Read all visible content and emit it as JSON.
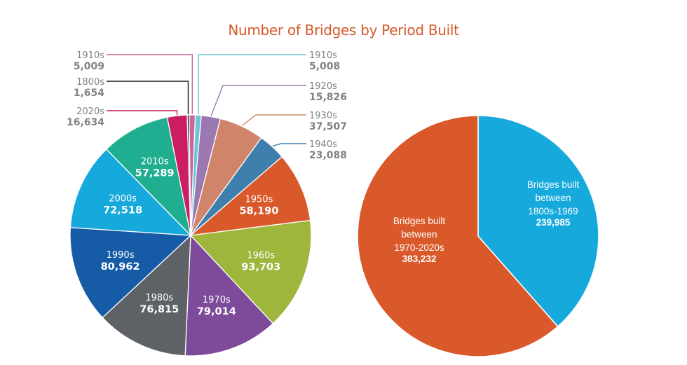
{
  "chart_data": [
    {
      "type": "pie",
      "title": "Number of Bridges by Period Built",
      "slices": [
        {
          "label": "1910s",
          "value": 5008,
          "value_label": "5,008",
          "color": "#6cc3d5",
          "label_position": "outside-right"
        },
        {
          "label": "1920s",
          "value": 15826,
          "value_label": "15,826",
          "color": "#9b79b0",
          "label_position": "outside-right"
        },
        {
          "label": "1930s",
          "value": 37507,
          "value_label": "37,507",
          "color": "#d0856b",
          "label_position": "outside-right"
        },
        {
          "label": "1940s",
          "value": 23088,
          "value_label": "23,088",
          "color": "#3f7fad",
          "label_position": "outside-right"
        },
        {
          "label": "1950s",
          "value": 58190,
          "value_label": "58,190",
          "color": "#d9592a",
          "label_position": "inside"
        },
        {
          "label": "1960s",
          "value": 93703,
          "value_label": "93,703",
          "color": "#9db63b",
          "label_position": "inside"
        },
        {
          "label": "1970s",
          "value": 79014,
          "value_label": "79,014",
          "color": "#7e4b9a",
          "label_position": "inside"
        },
        {
          "label": "1980s",
          "value": 76815,
          "value_label": "76,815",
          "color": "#5e6266",
          "label_position": "inside"
        },
        {
          "label": "1990s",
          "value": 80962,
          "value_label": "80,962",
          "color": "#165ba6",
          "label_position": "inside"
        },
        {
          "label": "2000s",
          "value": 72518,
          "value_label": "72,518",
          "color": "#15a9dc",
          "label_position": "inside"
        },
        {
          "label": "2010s",
          "value": 57289,
          "value_label": "57,289",
          "color": "#1fae8f",
          "label_position": "inside"
        },
        {
          "label": "2020s",
          "value": 16634,
          "value_label": "16,634",
          "color": "#cb1d63",
          "label_position": "outside-left"
        },
        {
          "label": "1800s",
          "value": 1654,
          "value_label": "1,654",
          "color": "#1a1a1a",
          "label_position": "outside-left"
        },
        {
          "label": "1910s",
          "value": 5009,
          "value_label": "5,009",
          "color": "#c8689a",
          "label_position": "outside-left"
        }
      ]
    },
    {
      "type": "pie",
      "title": "",
      "slices": [
        {
          "label_lines": [
            "Bridges built",
            "between",
            "1800s-1969"
          ],
          "value": 239985,
          "value_label": "239,985",
          "color": "#15a9dc"
        },
        {
          "label_lines": [
            "Bridges built",
            "between",
            "1970-2020s"
          ],
          "value": 383232,
          "value_label": "383,232",
          "color": "#d9592a"
        }
      ]
    }
  ]
}
